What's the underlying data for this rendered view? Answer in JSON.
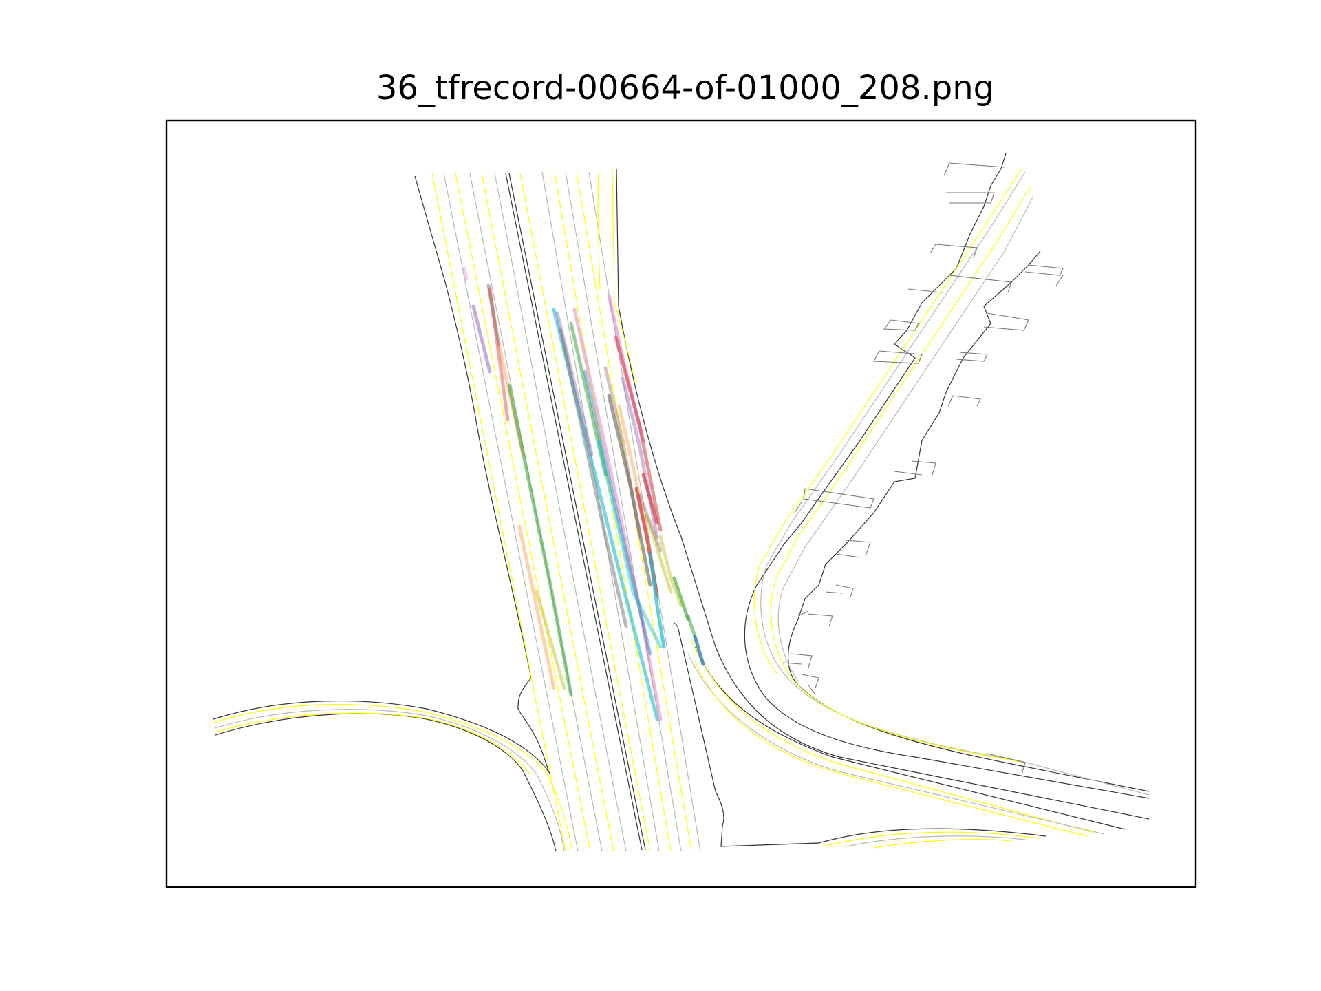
{
  "figure": {
    "title": "36_tfrecord-00664-of-01000_208.png"
  },
  "colors": {
    "road_edge": "#333333",
    "lane_center": "#b8b8b8",
    "lane_line": "#ffff00",
    "background": "#ffffff"
  },
  "track_colors": [
    "#1f77b4",
    "#ff7f0e",
    "#2ca02c",
    "#d62728",
    "#9467bd",
    "#8c564b",
    "#e377c2",
    "#7f7f7f",
    "#bcbd22",
    "#17becf"
  ]
}
